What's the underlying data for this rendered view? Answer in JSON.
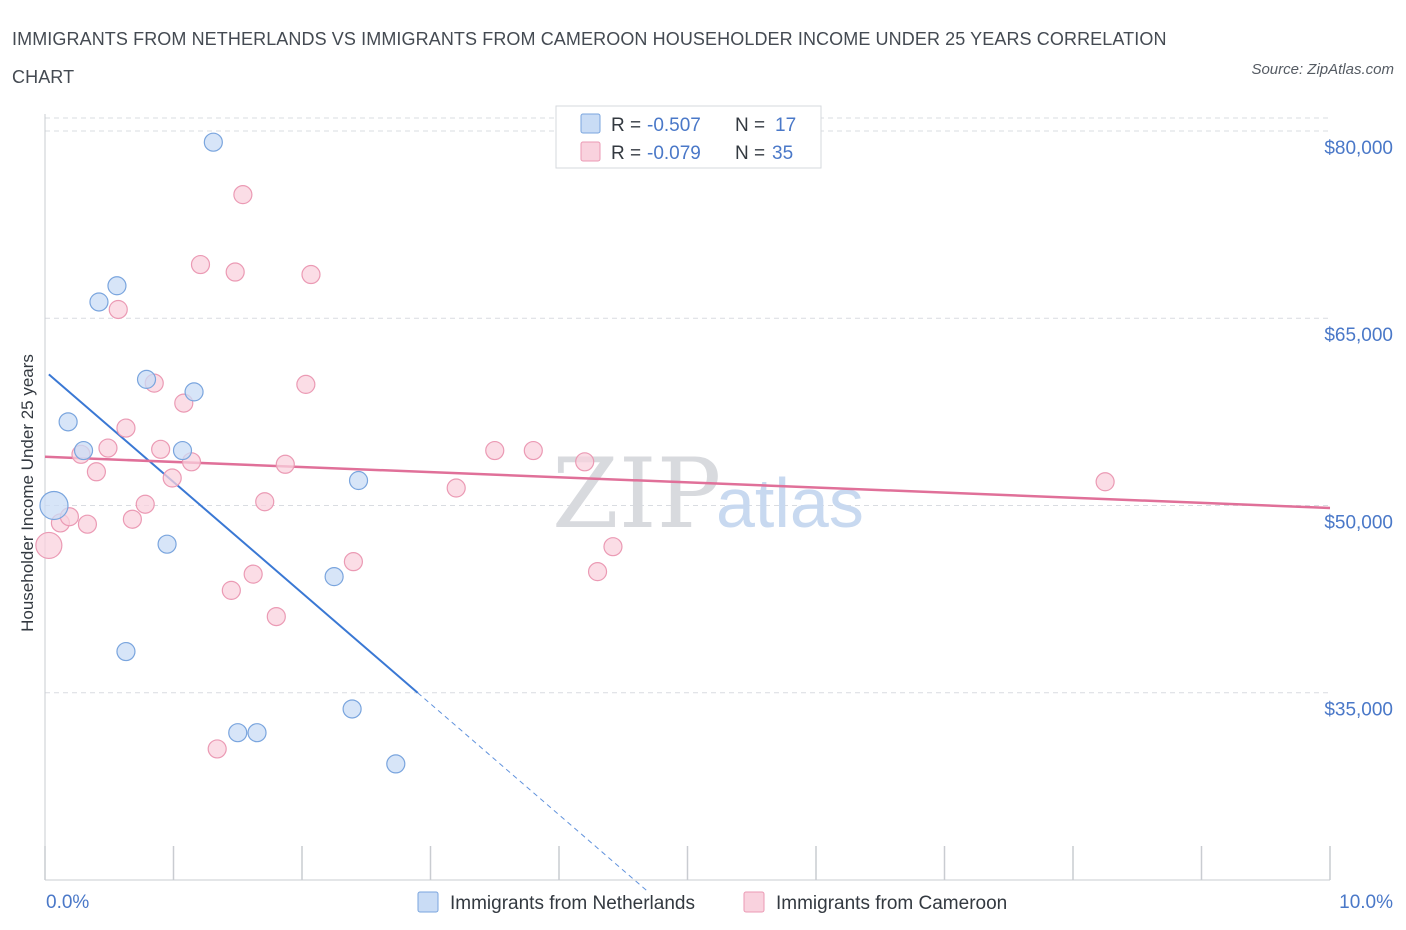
{
  "title": "IMMIGRANTS FROM NETHERLANDS VS IMMIGRANTS FROM CAMEROON HOUSEHOLDER INCOME UNDER 25 YEARS CORRELATION CHART",
  "source": "Source: ZipAtlas.com",
  "watermark": {
    "zip": "ZIP",
    "atlas": "atlas"
  },
  "colors": {
    "netherlands_fill": "#c9dcf5",
    "netherlands_stroke": "#7aa5de",
    "netherlands_line": "#3a78d4",
    "cameroon_fill": "#f9d2de",
    "cameroon_stroke": "#eb9ab4",
    "cameroon_line": "#e07099",
    "axis_text": "#4a78c8",
    "grid": "#d9dce1"
  },
  "legend": {
    "rows": [
      {
        "r_label": "R = ",
        "r_value": "-0.507",
        "n_label": "N = ",
        "n_value": "17"
      },
      {
        "r_label": "R = ",
        "r_value": "-0.079",
        "n_label": "N = ",
        "n_value": "35"
      }
    ]
  },
  "bottom_legend": [
    "Immigrants from Netherlands",
    "Immigrants from Cameroon"
  ],
  "chart_data": {
    "type": "scatter",
    "title": "IMMIGRANTS FROM NETHERLANDS VS IMMIGRANTS FROM CAMEROON HOUSEHOLDER INCOME UNDER 25 YEARS CORRELATION CHART",
    "xlabel": "",
    "ylabel": "Householder Income Under 25 years",
    "xlim": [
      0,
      10
    ],
    "ylim": [
      20000,
      82000
    ],
    "x_tick_labels": [
      "0.0%",
      "10.0%"
    ],
    "y_ticks": [
      35000,
      50000,
      65000,
      80000
    ],
    "y_tick_labels": [
      "$35,000",
      "$50,000",
      "$65,000",
      "$80,000"
    ],
    "grid": "horizontal dashed",
    "legend_placement": "top-center",
    "series": [
      {
        "name": "Immigrants from Netherlands",
        "points": [
          [
            0.07,
            50000,
            14
          ],
          [
            0.18,
            56700,
            9
          ],
          [
            0.3,
            54400,
            9
          ],
          [
            0.42,
            66300,
            9
          ],
          [
            0.56,
            67600,
            9
          ],
          [
            0.63,
            38300,
            9
          ],
          [
            0.79,
            60100,
            9
          ],
          [
            0.95,
            46900,
            9
          ],
          [
            1.07,
            54400,
            9
          ],
          [
            1.16,
            59100,
            9
          ],
          [
            1.31,
            79100,
            9
          ],
          [
            1.5,
            31800,
            9
          ],
          [
            1.65,
            31800,
            9
          ],
          [
            2.25,
            44300,
            9
          ],
          [
            2.39,
            33700,
            9
          ],
          [
            2.44,
            52000,
            9
          ],
          [
            2.73,
            29300,
            9
          ]
        ],
        "trend": {
          "x0": 0.03,
          "y0": 60500,
          "x1": 2.9,
          "y1": 35000,
          "dashed_to_x": 4.7,
          "dashed_to_y": 19000
        }
      },
      {
        "name": "Immigrants from Cameroon",
        "points": [
          [
            0.03,
            46800,
            13
          ],
          [
            0.12,
            48600,
            9
          ],
          [
            0.19,
            49100,
            9
          ],
          [
            0.28,
            54100,
            9
          ],
          [
            0.33,
            48500,
            9
          ],
          [
            0.4,
            52700,
            9
          ],
          [
            0.49,
            54600,
            9
          ],
          [
            0.57,
            65700,
            9
          ],
          [
            0.63,
            56200,
            9
          ],
          [
            0.68,
            48900,
            9
          ],
          [
            0.78,
            50100,
            9
          ],
          [
            0.85,
            59800,
            9
          ],
          [
            0.9,
            54500,
            9
          ],
          [
            0.99,
            52200,
            9
          ],
          [
            1.08,
            58200,
            9
          ],
          [
            1.14,
            53500,
            9
          ],
          [
            1.21,
            69300,
            9
          ],
          [
            1.34,
            30500,
            9
          ],
          [
            1.45,
            43200,
            9
          ],
          [
            1.48,
            68700,
            9
          ],
          [
            1.54,
            74900,
            9
          ],
          [
            1.62,
            44500,
            9
          ],
          [
            1.71,
            50300,
            9
          ],
          [
            1.8,
            41100,
            9
          ],
          [
            1.87,
            53300,
            9
          ],
          [
            2.03,
            59700,
            9
          ],
          [
            2.07,
            68500,
            9
          ],
          [
            2.4,
            45500,
            9
          ],
          [
            3.2,
            51400,
            9
          ],
          [
            3.5,
            54400,
            9
          ],
          [
            3.8,
            54400,
            9
          ],
          [
            4.2,
            53500,
            9
          ],
          [
            4.3,
            44700,
            9
          ],
          [
            4.42,
            46700,
            9
          ],
          [
            8.25,
            51900,
            9
          ]
        ],
        "trend": {
          "x0": 0.0,
          "y0": 53900,
          "x1": 10.0,
          "y1": 49800
        }
      }
    ]
  }
}
